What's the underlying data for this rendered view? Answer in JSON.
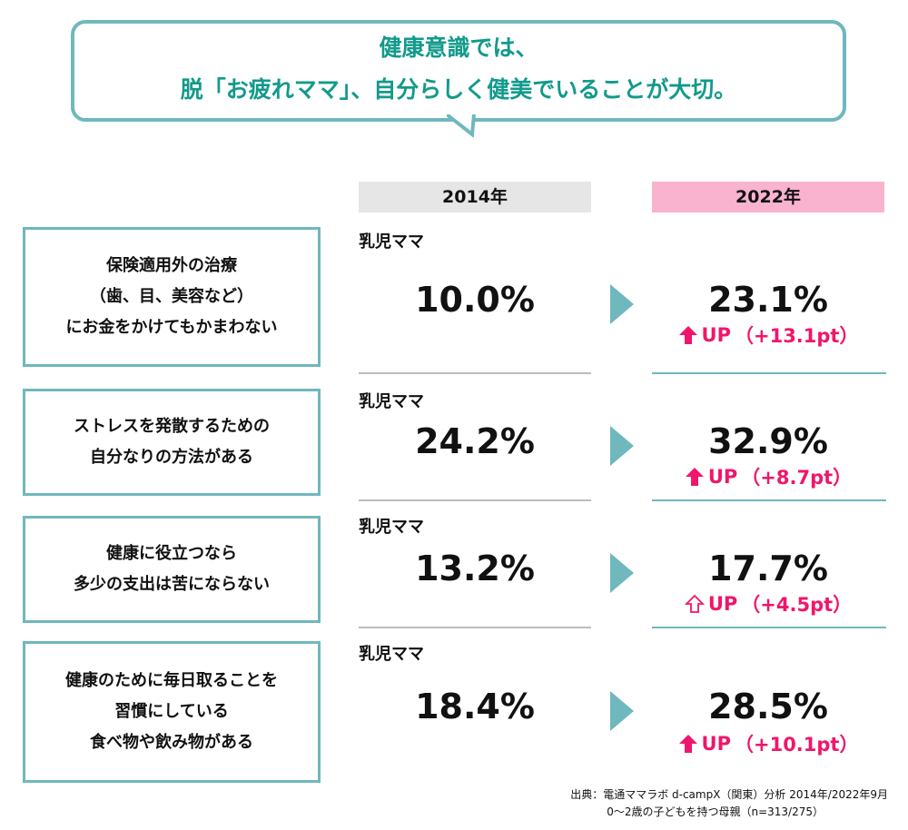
{
  "headline": {
    "line1": "健康意識では、",
    "line2": "脱「お疲れママ」、自分らしく健美でいることが大切。"
  },
  "columns": {
    "year_2014": "2014年",
    "year_2022": "2022年"
  },
  "colors": {
    "teal": "#6fb8bd",
    "title_teal": "#129a8b",
    "pink": "#f0166b",
    "header_2022_bg": "#f9b3cf",
    "header_2014_bg": "#e6e6e6"
  },
  "rows": [
    {
      "label": "保険適用外の治療\n（歯、目、美容など）\nにお金をかけてもかまわない",
      "segment": "乳児ママ",
      "value_2014": "10.0%",
      "value_2022": "23.1%",
      "up_label": "UP",
      "diff": "（+13.1pt）",
      "arrow_icon": "arrow-up-filled"
    },
    {
      "label": "ストレスを発散するための\n自分なりの方法がある",
      "segment": "乳児ママ",
      "value_2014": "24.2%",
      "value_2022": "32.9%",
      "up_label": "UP",
      "diff": "（+8.7pt）",
      "arrow_icon": "arrow-up-filled"
    },
    {
      "label": "健康に役立つなら\n多少の支出は苦にならない",
      "segment": "乳児ママ",
      "value_2014": "13.2%",
      "value_2022": "17.7%",
      "up_label": "UP",
      "diff": "（+4.5pt）",
      "arrow_icon": "arrow-up-outline"
    },
    {
      "label": "健康のために毎日取ることを\n習慣にしている\n食べ物や飲み物がある",
      "segment": "乳児ママ",
      "value_2014": "18.4%",
      "value_2022": "28.5%",
      "up_label": "UP",
      "diff": "（+10.1pt）",
      "arrow_icon": "arrow-up-filled"
    }
  ],
  "source": {
    "line1": "出典：電通ママラボ d-campX（関東）分析 2014年/2022年9月",
    "line2": "0～2歳の子どもを持つ母親（n=313/275）"
  }
}
